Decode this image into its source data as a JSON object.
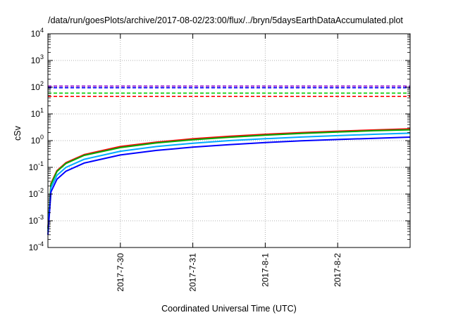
{
  "chart_data": {
    "type": "line",
    "title": "/data/run/goesPlots/archive/2017-08-02/23:00/flux/../bryn/5daysEarthDataAccumulated.plot",
    "xlabel": "Coordinated Universal Time (UTC)",
    "ylabel": "cSv",
    "yscale": "log",
    "ylim": [
      0.0001,
      10000
    ],
    "xlim": [
      "2017-07-29 00:00",
      "2017-08-03 00:00"
    ],
    "grid": true,
    "y_ticks": [
      {
        "base": "10",
        "exp": "-4",
        "value": 0.0001
      },
      {
        "base": "10",
        "exp": "-3",
        "value": 0.001
      },
      {
        "base": "10",
        "exp": "-2",
        "value": 0.01
      },
      {
        "base": "10",
        "exp": "-1",
        "value": 0.1
      },
      {
        "base": "10",
        "exp": "0",
        "value": 1
      },
      {
        "base": "10",
        "exp": "1",
        "value": 10
      },
      {
        "base": "10",
        "exp": "2",
        "value": 100
      },
      {
        "base": "10",
        "exp": "3",
        "value": 1000
      },
      {
        "base": "10",
        "exp": "4",
        "value": 10000
      }
    ],
    "x_ticks": [
      {
        "label": "2017-7-30",
        "date": "2017-07-30"
      },
      {
        "label": "2017-7-31",
        "date": "2017-07-31"
      },
      {
        "label": "2017-8-1",
        "date": "2017-08-01"
      },
      {
        "label": "2017-8-2",
        "date": "2017-08-02"
      }
    ],
    "series": [
      {
        "color": "#ff0000",
        "style": "solid",
        "x": [
          "2017-07-29 00:00",
          "2017-07-29 01:00",
          "2017-07-29 03:00",
          "2017-07-29 06:00",
          "2017-07-29 12:00",
          "2017-07-30 00:00",
          "2017-07-30 12:00",
          "2017-07-31 00:00",
          "2017-07-31 12:00",
          "2017-08-01 00:00",
          "2017-08-01 12:00",
          "2017-08-02 00:00",
          "2017-08-02 12:00",
          "2017-08-03 00:00"
        ],
        "values": [
          0.0005,
          0.025,
          0.075,
          0.15,
          0.3,
          0.6,
          0.88,
          1.17,
          1.45,
          1.72,
          2.0,
          2.25,
          2.5,
          2.75
        ]
      },
      {
        "color": "#00aa00",
        "style": "solid",
        "x": [
          "2017-07-29 00:00",
          "2017-07-29 01:00",
          "2017-07-29 03:00",
          "2017-07-29 06:00",
          "2017-07-29 12:00",
          "2017-07-30 00:00",
          "2017-07-30 12:00",
          "2017-07-31 00:00",
          "2017-07-31 12:00",
          "2017-08-01 00:00",
          "2017-08-01 12:00",
          "2017-08-02 00:00",
          "2017-08-02 12:00",
          "2017-08-03 00:00"
        ],
        "values": [
          0.0005,
          0.023,
          0.07,
          0.14,
          0.28,
          0.55,
          0.82,
          1.08,
          1.34,
          1.6,
          1.85,
          2.1,
          2.35,
          2.55
        ]
      },
      {
        "color": "#00aaff",
        "style": "solid",
        "x": [
          "2017-07-29 00:00",
          "2017-07-29 01:00",
          "2017-07-29 03:00",
          "2017-07-29 06:00",
          "2017-07-29 12:00",
          "2017-07-30 00:00",
          "2017-07-30 12:00",
          "2017-07-31 00:00",
          "2017-07-31 12:00",
          "2017-08-01 00:00",
          "2017-08-01 12:00",
          "2017-08-02 00:00",
          "2017-08-02 12:00",
          "2017-08-03 00:00"
        ],
        "values": [
          0.0004,
          0.017,
          0.05,
          0.1,
          0.2,
          0.4,
          0.6,
          0.8,
          1.0,
          1.18,
          1.36,
          1.54,
          1.72,
          1.9
        ]
      },
      {
        "color": "#0000ff",
        "style": "solid",
        "x": [
          "2017-07-29 00:00",
          "2017-07-29 01:00",
          "2017-07-29 03:00",
          "2017-07-29 06:00",
          "2017-07-29 12:00",
          "2017-07-30 00:00",
          "2017-07-30 12:00",
          "2017-07-31 00:00",
          "2017-07-31 12:00",
          "2017-08-01 00:00",
          "2017-08-01 12:00",
          "2017-08-02 00:00",
          "2017-08-02 12:00",
          "2017-08-03 00:00"
        ],
        "values": [
          0.0003,
          0.012,
          0.036,
          0.072,
          0.145,
          0.29,
          0.43,
          0.57,
          0.71,
          0.85,
          0.98,
          1.1,
          1.22,
          1.35
        ]
      },
      {
        "color": "#8800cc",
        "style": "dashed",
        "x": [
          "2017-07-29 00:00",
          "2017-08-03 00:00"
        ],
        "values": [
          110,
          110
        ]
      },
      {
        "color": "#0000ff",
        "style": "dashed",
        "x": [
          "2017-07-29 00:00",
          "2017-08-03 00:00"
        ],
        "values": [
          95,
          95
        ]
      },
      {
        "color": "#00cc00",
        "style": "dashed",
        "x": [
          "2017-07-29 00:00",
          "2017-08-03 00:00"
        ],
        "values": [
          60,
          60
        ]
      },
      {
        "color": "#ff0000",
        "style": "dashed",
        "x": [
          "2017-07-29 00:00",
          "2017-08-03 00:00"
        ],
        "values": [
          45,
          45
        ]
      }
    ]
  }
}
